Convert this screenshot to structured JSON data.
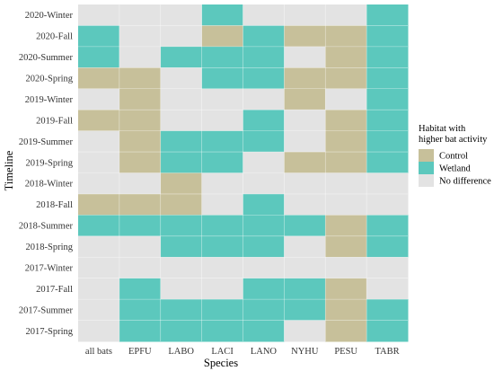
{
  "chart_data": {
    "type": "heatmap",
    "xlabel": "Species",
    "ylabel": "Timeline",
    "x_categories": [
      "all bats",
      "EPFU",
      "LABO",
      "LACI",
      "LANO",
      "NYHU",
      "PESU",
      "TABR"
    ],
    "y_categories": [
      "2020-Winter",
      "2020-Fall",
      "2020-Summer",
      "2020-Spring",
      "2019-Winter",
      "2019-Fall",
      "2019-Summer",
      "2019-Spring",
      "2018-Winter",
      "2018-Fall",
      "2018-Summer",
      "2018-Spring",
      "2017-Winter",
      "2017-Fall",
      "2017-Summer",
      "2017-Spring"
    ],
    "legend": {
      "title_lines": [
        "Habitat with",
        "higher bat activity"
      ],
      "entries": [
        {
          "key": "C",
          "label": "Control",
          "color": "#c7c09a"
        },
        {
          "key": "W",
          "label": "Wetland",
          "color": "#5cc8bd"
        },
        {
          "key": "N",
          "label": "No difference",
          "color": "#e3e3e3"
        }
      ],
      "placement": "right"
    },
    "cells": [
      [
        "N",
        "N",
        "N",
        "W",
        "N",
        "N",
        "N",
        "W"
      ],
      [
        "W",
        "N",
        "N",
        "C",
        "W",
        "C",
        "C",
        "W"
      ],
      [
        "W",
        "N",
        "W",
        "W",
        "W",
        "N",
        "C",
        "W"
      ],
      [
        "C",
        "C",
        "N",
        "W",
        "W",
        "C",
        "C",
        "W"
      ],
      [
        "N",
        "C",
        "N",
        "N",
        "N",
        "C",
        "N",
        "W"
      ],
      [
        "C",
        "C",
        "N",
        "N",
        "W",
        "N",
        "C",
        "W"
      ],
      [
        "N",
        "C",
        "W",
        "W",
        "W",
        "N",
        "C",
        "W"
      ],
      [
        "N",
        "C",
        "W",
        "W",
        "N",
        "C",
        "C",
        "W"
      ],
      [
        "N",
        "N",
        "C",
        "N",
        "N",
        "N",
        "N",
        "N"
      ],
      [
        "C",
        "C",
        "C",
        "N",
        "W",
        "N",
        "N",
        "N"
      ],
      [
        "W",
        "W",
        "W",
        "W",
        "W",
        "W",
        "C",
        "W"
      ],
      [
        "N",
        "N",
        "W",
        "W",
        "W",
        "N",
        "C",
        "W"
      ],
      [
        "N",
        "N",
        "N",
        "N",
        "N",
        "N",
        "N",
        "N"
      ],
      [
        "N",
        "W",
        "N",
        "N",
        "W",
        "W",
        "C",
        "N"
      ],
      [
        "N",
        "W",
        "W",
        "W",
        "W",
        "W",
        "C",
        "W"
      ],
      [
        "N",
        "W",
        "W",
        "W",
        "W",
        "N",
        "C",
        "W"
      ]
    ]
  }
}
